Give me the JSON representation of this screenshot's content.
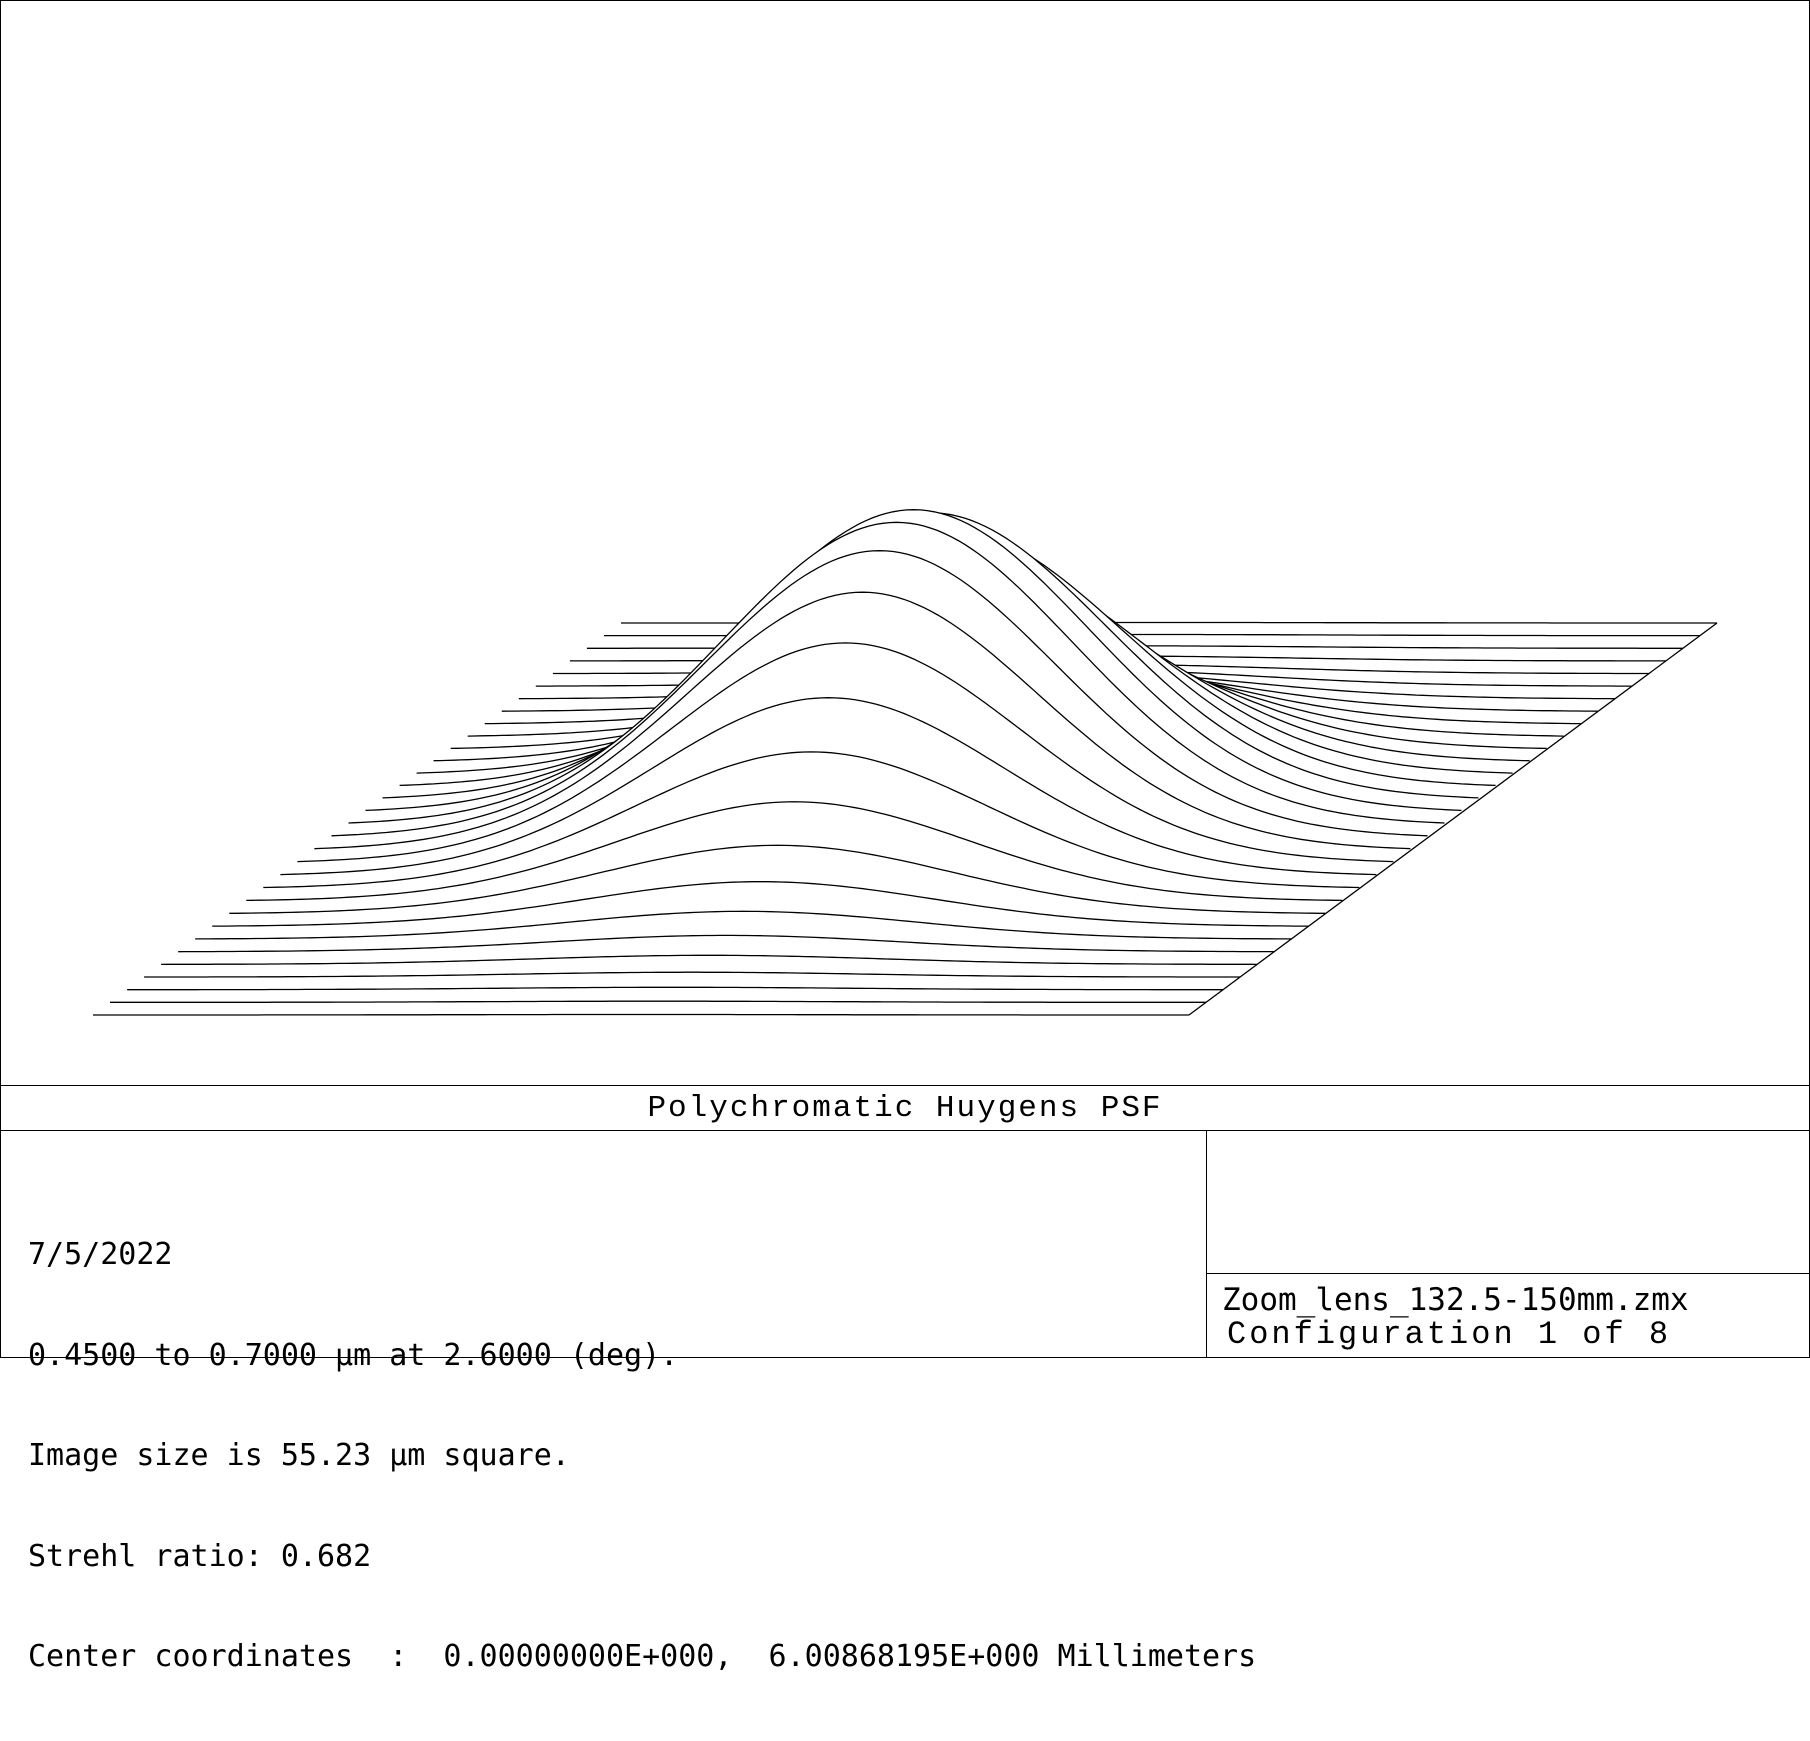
{
  "chart_data": {
    "type": "surface",
    "title": "Polychromatic Huygens PSF",
    "view": "3D wireframe surface, rows drawn back to front",
    "grid_rows": 32,
    "peak": {
      "relative_intensity": 1.0
    },
    "line_color": "#000000",
    "background_color": "#ffffff"
  },
  "info": {
    "date": "7/5/2022",
    "wavelength": "0.4500 to 0.7000 µm at 2.6000 (deg).",
    "image_size": "Image size is 55.23 µm square.",
    "strehl": "Strehl ratio: 0.682",
    "center": "Center coordinates  :  0.00000000E+000,  6.00868195E+000 Millimeters"
  },
  "file": {
    "name": "Zoom_lens_132.5-150mm.zmx",
    "configuration": "Configuration 1 of 8"
  }
}
